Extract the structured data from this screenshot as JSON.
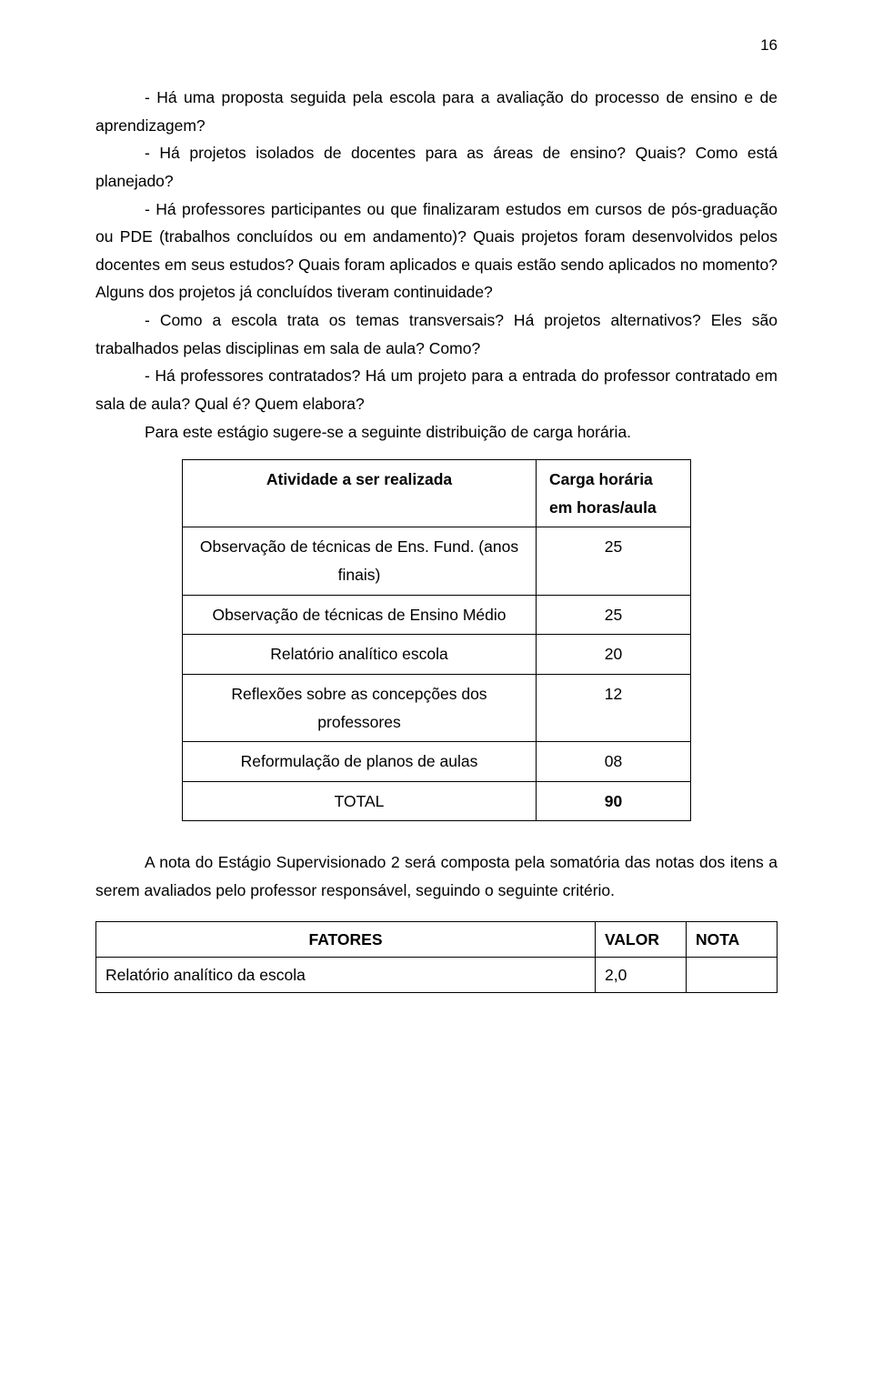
{
  "page_number": "16",
  "paragraphs": {
    "p1": "- Há uma proposta seguida pela escola para a avaliação do processo de ensino e de aprendizagem?",
    "p2": "- Há projetos isolados de docentes para as áreas de ensino? Quais? Como está planejado?",
    "p3": "- Há professores participantes ou que finalizaram estudos em cursos de pós-graduação ou PDE (trabalhos concluídos ou em andamento)? Quais projetos foram desenvolvidos pelos docentes em seus estudos? Quais foram aplicados e quais estão sendo aplicados no momento? Alguns dos projetos já concluídos tiveram continuidade?",
    "p4": "- Como a escola trata os temas transversais? Há projetos alternativos? Eles são trabalhados pelas disciplinas em sala de aula? Como?",
    "p5": "- Há professores contratados? Há um projeto para a entrada do professor contratado em sala de aula? Qual é? Quem elabora?",
    "p6": "Para este estágio sugere-se a seguinte distribuição de carga horária.",
    "p7": "A nota do Estágio Supervisionado 2 será composta pela somatória das notas dos itens a serem avaliados pelo professor responsável, seguindo o seguinte critério."
  },
  "activity_table": {
    "header_left": "Atividade a ser realizada",
    "header_right_line1": "Carga horária",
    "header_right_line2": "em horas/aula",
    "rows": [
      {
        "activity_line1": "Observação de técnicas de Ens. Fund. (anos",
        "activity_line2": "finais)",
        "hours": "25"
      },
      {
        "activity_line1": "Observação de técnicas de Ensino Médio",
        "activity_line2": "",
        "hours": "25"
      },
      {
        "activity_line1": "Relatório analítico escola",
        "activity_line2": "",
        "hours": "20"
      },
      {
        "activity_line1": "Reflexões sobre as concepções dos",
        "activity_line2": "professores",
        "hours": "12"
      },
      {
        "activity_line1": "Reformulação de planos de aulas",
        "activity_line2": "",
        "hours": "08"
      },
      {
        "activity_line1": "TOTAL",
        "activity_line2": "",
        "hours": "90"
      }
    ]
  },
  "factors_table": {
    "header_factor": "FATORES",
    "header_value": "VALOR",
    "header_note": "NOTA",
    "rows": [
      {
        "factor": "Relatório analítico da escola",
        "value": "2,0",
        "note": ""
      }
    ]
  }
}
